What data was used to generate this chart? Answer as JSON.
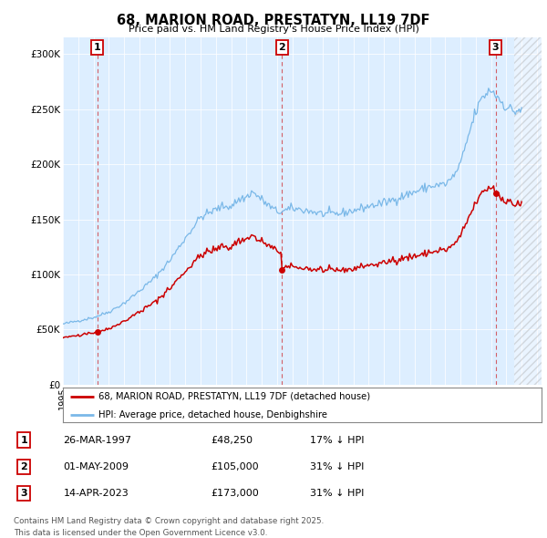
{
  "title": "68, MARION ROAD, PRESTATYN, LL19 7DF",
  "subtitle": "Price paid vs. HM Land Registry's House Price Index (HPI)",
  "ylabel_ticks": [
    "£0",
    "£50K",
    "£100K",
    "£150K",
    "£200K",
    "£250K",
    "£300K"
  ],
  "ytick_values": [
    0,
    50000,
    100000,
    150000,
    200000,
    250000,
    300000
  ],
  "ylim": [
    0,
    315000
  ],
  "xlim_start": 1995.0,
  "xlim_end": 2026.3,
  "bg_color": "#ddeeff",
  "line_color_red": "#cc0000",
  "line_color_blue": "#7ab8e8",
  "legend_label_red": "68, MARION ROAD, PRESTATYN, LL19 7DF (detached house)",
  "legend_label_blue": "HPI: Average price, detached house, Denbighshire",
  "footer": "Contains HM Land Registry data © Crown copyright and database right 2025.\nThis data is licensed under the Open Government Licence v3.0.",
  "transactions": [
    {
      "num": 1,
      "date": "26-MAR-1997",
      "price": 48250,
      "pct": "17% ↓ HPI",
      "x": 1997.24
    },
    {
      "num": 2,
      "date": "01-MAY-2009",
      "price": 105000,
      "pct": "31% ↓ HPI",
      "x": 2009.33
    },
    {
      "num": 3,
      "date": "14-APR-2023",
      "price": 173000,
      "pct": "31% ↓ HPI",
      "x": 2023.29
    }
  ],
  "hatch_start": 2024.5
}
